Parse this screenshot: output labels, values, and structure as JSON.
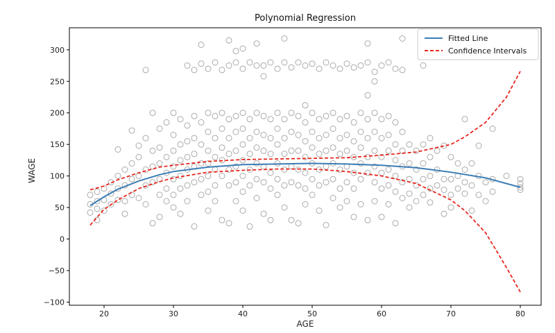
{
  "chart_data": {
    "type": "scatter",
    "title": "Polynomial Regression",
    "xlabel": "AGE",
    "ylabel": "WAGE",
    "xlim": [
      15,
      83
    ],
    "ylim": [
      -105,
      335
    ],
    "xticks": [
      20,
      30,
      40,
      50,
      60,
      70,
      80
    ],
    "yticks": [
      -100,
      -50,
      0,
      50,
      100,
      150,
      200,
      250,
      300
    ],
    "grid": false,
    "legend_position": "top-right",
    "colors": {
      "points": "#aaaaaa",
      "fitted": "#3b7db5",
      "confidence": "#e8261d"
    },
    "series": [
      {
        "name": "Fitted Line",
        "style": "solid",
        "x": [
          18,
          20,
          22,
          25,
          28,
          30,
          35,
          40,
          45,
          50,
          55,
          60,
          65,
          70,
          75,
          80
        ],
        "y": [
          53,
          67,
          79,
          92,
          102,
          107,
          114,
          118,
          119,
          120,
          119,
          117,
          113,
          106,
          97,
          82
        ]
      },
      {
        "name": "Confidence Intervals",
        "style": "dashed",
        "band": "upper",
        "x": [
          18,
          20,
          22,
          25,
          28,
          30,
          35,
          40,
          45,
          50,
          55,
          60,
          65,
          70,
          72,
          75,
          78,
          80
        ],
        "y": [
          78,
          84,
          94,
          105,
          114,
          117,
          123,
          126,
          127,
          128,
          129,
          133,
          138,
          150,
          162,
          185,
          225,
          266
        ]
      },
      {
        "name": "Confidence Intervals",
        "style": "dashed",
        "band": "lower",
        "x": [
          18,
          20,
          22,
          25,
          28,
          30,
          35,
          40,
          45,
          50,
          55,
          60,
          65,
          70,
          72,
          75,
          78,
          80
        ],
        "y": [
          22,
          47,
          62,
          80,
          91,
          97,
          106,
          109,
          111,
          111,
          107,
          100,
          88,
          62,
          45,
          10,
          -45,
          -84
        ]
      }
    ],
    "scatter_points": [
      [
        18,
        70
      ],
      [
        18,
        55
      ],
      [
        18,
        42
      ],
      [
        19,
        60
      ],
      [
        19,
        75
      ],
      [
        19,
        30
      ],
      [
        19,
        48
      ],
      [
        20,
        80
      ],
      [
        20,
        62
      ],
      [
        20,
        45
      ],
      [
        21,
        90
      ],
      [
        21,
        55
      ],
      [
        21,
        72
      ],
      [
        22,
        100
      ],
      [
        22,
        62
      ],
      [
        22,
        142
      ],
      [
        22,
        80
      ],
      [
        23,
        110
      ],
      [
        23,
        85
      ],
      [
        23,
        40
      ],
      [
        23,
        60
      ],
      [
        24,
        120
      ],
      [
        24,
        95
      ],
      [
        24,
        70
      ],
      [
        24,
        172
      ],
      [
        25,
        130
      ],
      [
        25,
        100
      ],
      [
        25,
        65
      ],
      [
        25,
        148
      ],
      [
        26,
        268
      ],
      [
        26,
        160
      ],
      [
        26,
        110
      ],
      [
        26,
        85
      ],
      [
        26,
        55
      ],
      [
        27,
        200
      ],
      [
        27,
        140
      ],
      [
        27,
        115
      ],
      [
        27,
        90
      ],
      [
        27,
        25
      ],
      [
        28,
        175
      ],
      [
        28,
        145
      ],
      [
        28,
        120
      ],
      [
        28,
        95
      ],
      [
        28,
        70
      ],
      [
        28,
        35
      ],
      [
        29,
        185
      ],
      [
        29,
        130
      ],
      [
        29,
        105
      ],
      [
        29,
        80
      ],
      [
        29,
        60
      ],
      [
        30,
        200
      ],
      [
        30,
        165
      ],
      [
        30,
        140
      ],
      [
        30,
        115
      ],
      [
        30,
        95
      ],
      [
        30,
        70
      ],
      [
        30,
        50
      ],
      [
        31,
        190
      ],
      [
        31,
        150
      ],
      [
        31,
        125
      ],
      [
        31,
        100
      ],
      [
        31,
        80
      ],
      [
        31,
        40
      ],
      [
        32,
        275
      ],
      [
        32,
        180
      ],
      [
        32,
        155
      ],
      [
        32,
        130
      ],
      [
        32,
        110
      ],
      [
        32,
        85
      ],
      [
        32,
        60
      ],
      [
        33,
        268
      ],
      [
        33,
        195
      ],
      [
        33,
        160
      ],
      [
        33,
        135
      ],
      [
        33,
        115
      ],
      [
        33,
        90
      ],
      [
        33,
        20
      ],
      [
        34,
        308
      ],
      [
        34,
        278
      ],
      [
        34,
        185
      ],
      [
        34,
        150
      ],
      [
        34,
        120
      ],
      [
        34,
        95
      ],
      [
        34,
        70
      ],
      [
        35,
        270
      ],
      [
        35,
        200
      ],
      [
        35,
        170
      ],
      [
        35,
        140
      ],
      [
        35,
        120
      ],
      [
        35,
        100
      ],
      [
        35,
        75
      ],
      [
        35,
        45
      ],
      [
        36,
        280
      ],
      [
        36,
        195
      ],
      [
        36,
        160
      ],
      [
        36,
        130
      ],
      [
        36,
        110
      ],
      [
        36,
        85
      ],
      [
        36,
        60
      ],
      [
        37,
        268
      ],
      [
        37,
        200
      ],
      [
        37,
        175
      ],
      [
        37,
        145
      ],
      [
        37,
        125
      ],
      [
        37,
        100
      ],
      [
        37,
        30
      ],
      [
        38,
        315
      ],
      [
        38,
        275
      ],
      [
        38,
        190
      ],
      [
        38,
        160
      ],
      [
        38,
        135
      ],
      [
        38,
        110
      ],
      [
        38,
        85
      ],
      [
        38,
        25
      ],
      [
        39,
        298
      ],
      [
        39,
        280
      ],
      [
        39,
        195
      ],
      [
        39,
        170
      ],
      [
        39,
        140
      ],
      [
        39,
        115
      ],
      [
        39,
        90
      ],
      [
        39,
        60
      ],
      [
        40,
        302
      ],
      [
        40,
        270
      ],
      [
        40,
        200
      ],
      [
        40,
        175
      ],
      [
        40,
        150
      ],
      [
        40,
        125
      ],
      [
        40,
        100
      ],
      [
        40,
        75
      ],
      [
        40,
        45
      ],
      [
        41,
        280
      ],
      [
        41,
        190
      ],
      [
        41,
        160
      ],
      [
        41,
        135
      ],
      [
        41,
        110
      ],
      [
        41,
        85
      ],
      [
        41,
        20
      ],
      [
        42,
        310
      ],
      [
        42,
        275
      ],
      [
        42,
        200
      ],
      [
        42,
        170
      ],
      [
        42,
        145
      ],
      [
        42,
        120
      ],
      [
        42,
        95
      ],
      [
        42,
        65
      ],
      [
        43,
        258
      ],
      [
        43,
        275
      ],
      [
        43,
        195
      ],
      [
        43,
        165
      ],
      [
        43,
        140
      ],
      [
        43,
        115
      ],
      [
        43,
        90
      ],
      [
        43,
        40
      ],
      [
        44,
        280
      ],
      [
        44,
        190
      ],
      [
        44,
        160
      ],
      [
        44,
        135
      ],
      [
        44,
        105
      ],
      [
        44,
        80
      ],
      [
        44,
        30
      ],
      [
        45,
        270
      ],
      [
        45,
        200
      ],
      [
        45,
        175
      ],
      [
        45,
        150
      ],
      [
        45,
        120
      ],
      [
        45,
        95
      ],
      [
        45,
        70
      ],
      [
        46,
        318
      ],
      [
        46,
        280
      ],
      [
        46,
        190
      ],
      [
        46,
        160
      ],
      [
        46,
        135
      ],
      [
        46,
        110
      ],
      [
        46,
        85
      ],
      [
        46,
        50
      ],
      [
        47,
        272
      ],
      [
        47,
        200
      ],
      [
        47,
        170
      ],
      [
        47,
        140
      ],
      [
        47,
        115
      ],
      [
        47,
        90
      ],
      [
        47,
        30
      ],
      [
        48,
        280
      ],
      [
        48,
        195
      ],
      [
        48,
        165
      ],
      [
        48,
        140
      ],
      [
        48,
        110
      ],
      [
        48,
        85
      ],
      [
        48,
        25
      ],
      [
        49,
        275
      ],
      [
        49,
        212
      ],
      [
        49,
        185
      ],
      [
        49,
        155
      ],
      [
        49,
        130
      ],
      [
        49,
        105
      ],
      [
        49,
        80
      ],
      [
        49,
        55
      ],
      [
        50,
        278
      ],
      [
        50,
        200
      ],
      [
        50,
        170
      ],
      [
        50,
        145
      ],
      [
        50,
        120
      ],
      [
        50,
        95
      ],
      [
        50,
        70
      ],
      [
        51,
        270
      ],
      [
        51,
        190
      ],
      [
        51,
        160
      ],
      [
        51,
        135
      ],
      [
        51,
        110
      ],
      [
        51,
        85
      ],
      [
        51,
        45
      ],
      [
        52,
        280
      ],
      [
        52,
        195
      ],
      [
        52,
        165
      ],
      [
        52,
        140
      ],
      [
        52,
        115
      ],
      [
        52,
        90
      ],
      [
        52,
        22
      ],
      [
        53,
        275
      ],
      [
        53,
        200
      ],
      [
        53,
        175
      ],
      [
        53,
        145
      ],
      [
        53,
        120
      ],
      [
        53,
        95
      ],
      [
        53,
        65
      ],
      [
        54,
        270
      ],
      [
        54,
        190
      ],
      [
        54,
        160
      ],
      [
        54,
        135
      ],
      [
        54,
        110
      ],
      [
        54,
        80
      ],
      [
        54,
        50
      ],
      [
        55,
        278
      ],
      [
        55,
        195
      ],
      [
        55,
        165
      ],
      [
        55,
        140
      ],
      [
        55,
        115
      ],
      [
        55,
        90
      ],
      [
        55,
        60
      ],
      [
        56,
        272
      ],
      [
        56,
        185
      ],
      [
        56,
        155
      ],
      [
        56,
        130
      ],
      [
        56,
        105
      ],
      [
        56,
        80
      ],
      [
        56,
        35
      ],
      [
        57,
        275
      ],
      [
        57,
        200
      ],
      [
        57,
        170
      ],
      [
        57,
        145
      ],
      [
        57,
        120
      ],
      [
        57,
        95
      ],
      [
        57,
        55
      ],
      [
        58,
        310
      ],
      [
        58,
        280
      ],
      [
        58,
        228
      ],
      [
        58,
        190
      ],
      [
        58,
        160
      ],
      [
        58,
        130
      ],
      [
        58,
        105
      ],
      [
        58,
        30
      ],
      [
        59,
        265
      ],
      [
        59,
        250
      ],
      [
        59,
        200
      ],
      [
        59,
        170
      ],
      [
        59,
        140
      ],
      [
        59,
        115
      ],
      [
        59,
        90
      ],
      [
        59,
        60
      ],
      [
        60,
        275
      ],
      [
        60,
        190
      ],
      [
        60,
        160
      ],
      [
        60,
        130
      ],
      [
        60,
        105
      ],
      [
        60,
        80
      ],
      [
        60,
        35
      ],
      [
        61,
        280
      ],
      [
        61,
        195
      ],
      [
        61,
        165
      ],
      [
        61,
        140
      ],
      [
        61,
        110
      ],
      [
        61,
        85
      ],
      [
        61,
        55
      ],
      [
        62,
        270
      ],
      [
        62,
        185
      ],
      [
        62,
        150
      ],
      [
        62,
        125
      ],
      [
        62,
        100
      ],
      [
        62,
        75
      ],
      [
        62,
        25
      ],
      [
        63,
        318
      ],
      [
        63,
        268
      ],
      [
        63,
        170
      ],
      [
        63,
        140
      ],
      [
        63,
        115
      ],
      [
        63,
        90
      ],
      [
        63,
        65
      ],
      [
        64,
        150
      ],
      [
        64,
        120
      ],
      [
        64,
        95
      ],
      [
        64,
        72
      ],
      [
        64,
        50
      ],
      [
        65,
        140
      ],
      [
        65,
        110
      ],
      [
        65,
        85
      ],
      [
        65,
        60
      ],
      [
        66,
        275
      ],
      [
        66,
        150
      ],
      [
        66,
        120
      ],
      [
        66,
        95
      ],
      [
        66,
        70
      ],
      [
        67,
        160
      ],
      [
        67,
        130
      ],
      [
        67,
        100
      ],
      [
        67,
        80
      ],
      [
        67,
        58
      ],
      [
        68,
        140
      ],
      [
        68,
        110
      ],
      [
        68,
        85
      ],
      [
        69,
        148
      ],
      [
        69,
        95
      ],
      [
        69,
        78
      ],
      [
        69,
        40
      ],
      [
        70,
        130
      ],
      [
        70,
        95
      ],
      [
        70,
        70
      ],
      [
        70,
        50
      ],
      [
        71,
        120
      ],
      [
        71,
        100
      ],
      [
        71,
        80
      ],
      [
        72,
        190
      ],
      [
        72,
        110
      ],
      [
        72,
        90
      ],
      [
        72,
        72
      ],
      [
        73,
        120
      ],
      [
        73,
        85
      ],
      [
        73,
        45
      ],
      [
        74,
        148
      ],
      [
        74,
        100
      ],
      [
        74,
        70
      ],
      [
        75,
        90
      ],
      [
        75,
        60
      ],
      [
        76,
        175
      ],
      [
        76,
        95
      ],
      [
        76,
        75
      ],
      [
        78,
        100
      ],
      [
        80,
        95
      ],
      [
        80,
        88
      ],
      [
        80,
        82
      ],
      [
        80,
        78
      ]
    ]
  }
}
